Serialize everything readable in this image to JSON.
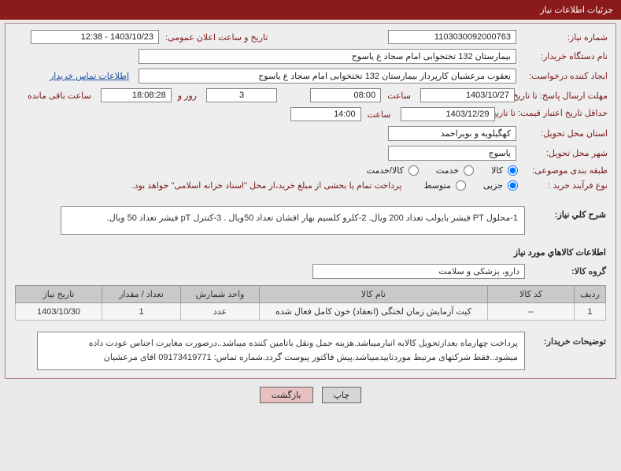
{
  "header_title": "جزئیات اطلاعات نیاز",
  "labels": {
    "need_no": "شماره نیاز:",
    "announce_date": "تاریخ و ساعت اعلان عمومی:",
    "buyer_name": "نام دستگاه خریدار:",
    "requester": "ایجاد کننده درخواست:",
    "contact_link": "اطلاعات تماس خریدار",
    "reply_deadline": "مهلت ارسال پاسخ: تا تاریخ:",
    "hour": "ساعت",
    "days_and": "روز و",
    "remaining": "ساعت باقی مانده",
    "price_validity": "حداقل تاریخ اعتبار قیمت: تا تاریخ:",
    "delivery_province": "استان محل تحویل:",
    "delivery_city": "شهر محل تحویل:",
    "category": "طبقه بندی موضوعی:",
    "cat_goods": "کالا",
    "cat_service": "خدمت",
    "cat_goods_service": "کالا/خدمت",
    "process_type": "نوع فرآیند خرید :",
    "proc_small": "جزیی",
    "proc_medium": "متوسط",
    "payment_note": "پرداخت تمام یا بخشی از مبلغ خرید،از محل \"اسناد خزانه اسلامی\" خواهد بود.",
    "overall_desc": "شرح کلي نياز:",
    "goods_section": "اطلاعات کالاهاي مورد نياز",
    "goods_group": "گروه کالا:",
    "buyer_notes": "توضیحات خریدار:",
    "print": "چاپ",
    "back": "بازگشت"
  },
  "values": {
    "need_no": "1103030092000763",
    "announce_date": "1403/10/23 - 12:38",
    "buyer_name": "بیمارستان 132 تختخوابی امام سجاد  ع  یاسوج",
    "requester": "یعقوب مرعشیان کارپرداز بیمارستان 132 تختخوابی امام سجاد  ع  یاسوج",
    "reply_date": "1403/10/27",
    "reply_hour": "08:00",
    "remaining_days": "3",
    "remaining_time": "18:08:28",
    "price_date": "1403/12/29",
    "price_hour": "14:00",
    "province": "کهگیلویه و بویراحمد",
    "city": "یاسوج",
    "overall_desc": "1-محلول PT فیشر بایولب تعداد 200 ویال.   2-کلرو کلسیم بهار افشان تعداد 50ویال .    3-کنترل pT فیشر تعداد 50 ویال.",
    "goods_group": "دارو، پزشکی و سلامت",
    "buyer_notes": "پرداخت چهارماه بعدازتحویل کالابه انبارمیباشد.هزینه حمل ونقل باتامین کننده میباشد..درصورت مغایرت اجناس عودت داده میشود..فقط شرکتهای مرتبط موردتاییدمیباشد.پیش فاکتور پیوست گردد.شماره تماس: 09173419771  اقای مرعشیان"
  },
  "table": {
    "headers": {
      "row": "ردیف",
      "code": "کد کالا",
      "name": "نام کالا",
      "unit": "واحد شمارش",
      "qty": "تعداد / مقدار",
      "date": "تاریخ نیاز"
    },
    "col_widths": {
      "row": "40px",
      "code": "110px",
      "name": "280px",
      "unit": "100px",
      "qty": "100px",
      "date": "110px"
    },
    "rows": [
      {
        "row": "1",
        "code": "--",
        "name": "کیت آزمایش زمان لختگی (انعقاد) خون کامل فعال شده",
        "unit": "عدد",
        "qty": "1",
        "date": "1403/10/30"
      }
    ]
  },
  "colors": {
    "header_bg": "#8b1a1a",
    "label_color": "#7a1a1a",
    "link_color": "#1a4fa0",
    "th_bg": "#c9c9c9"
  }
}
